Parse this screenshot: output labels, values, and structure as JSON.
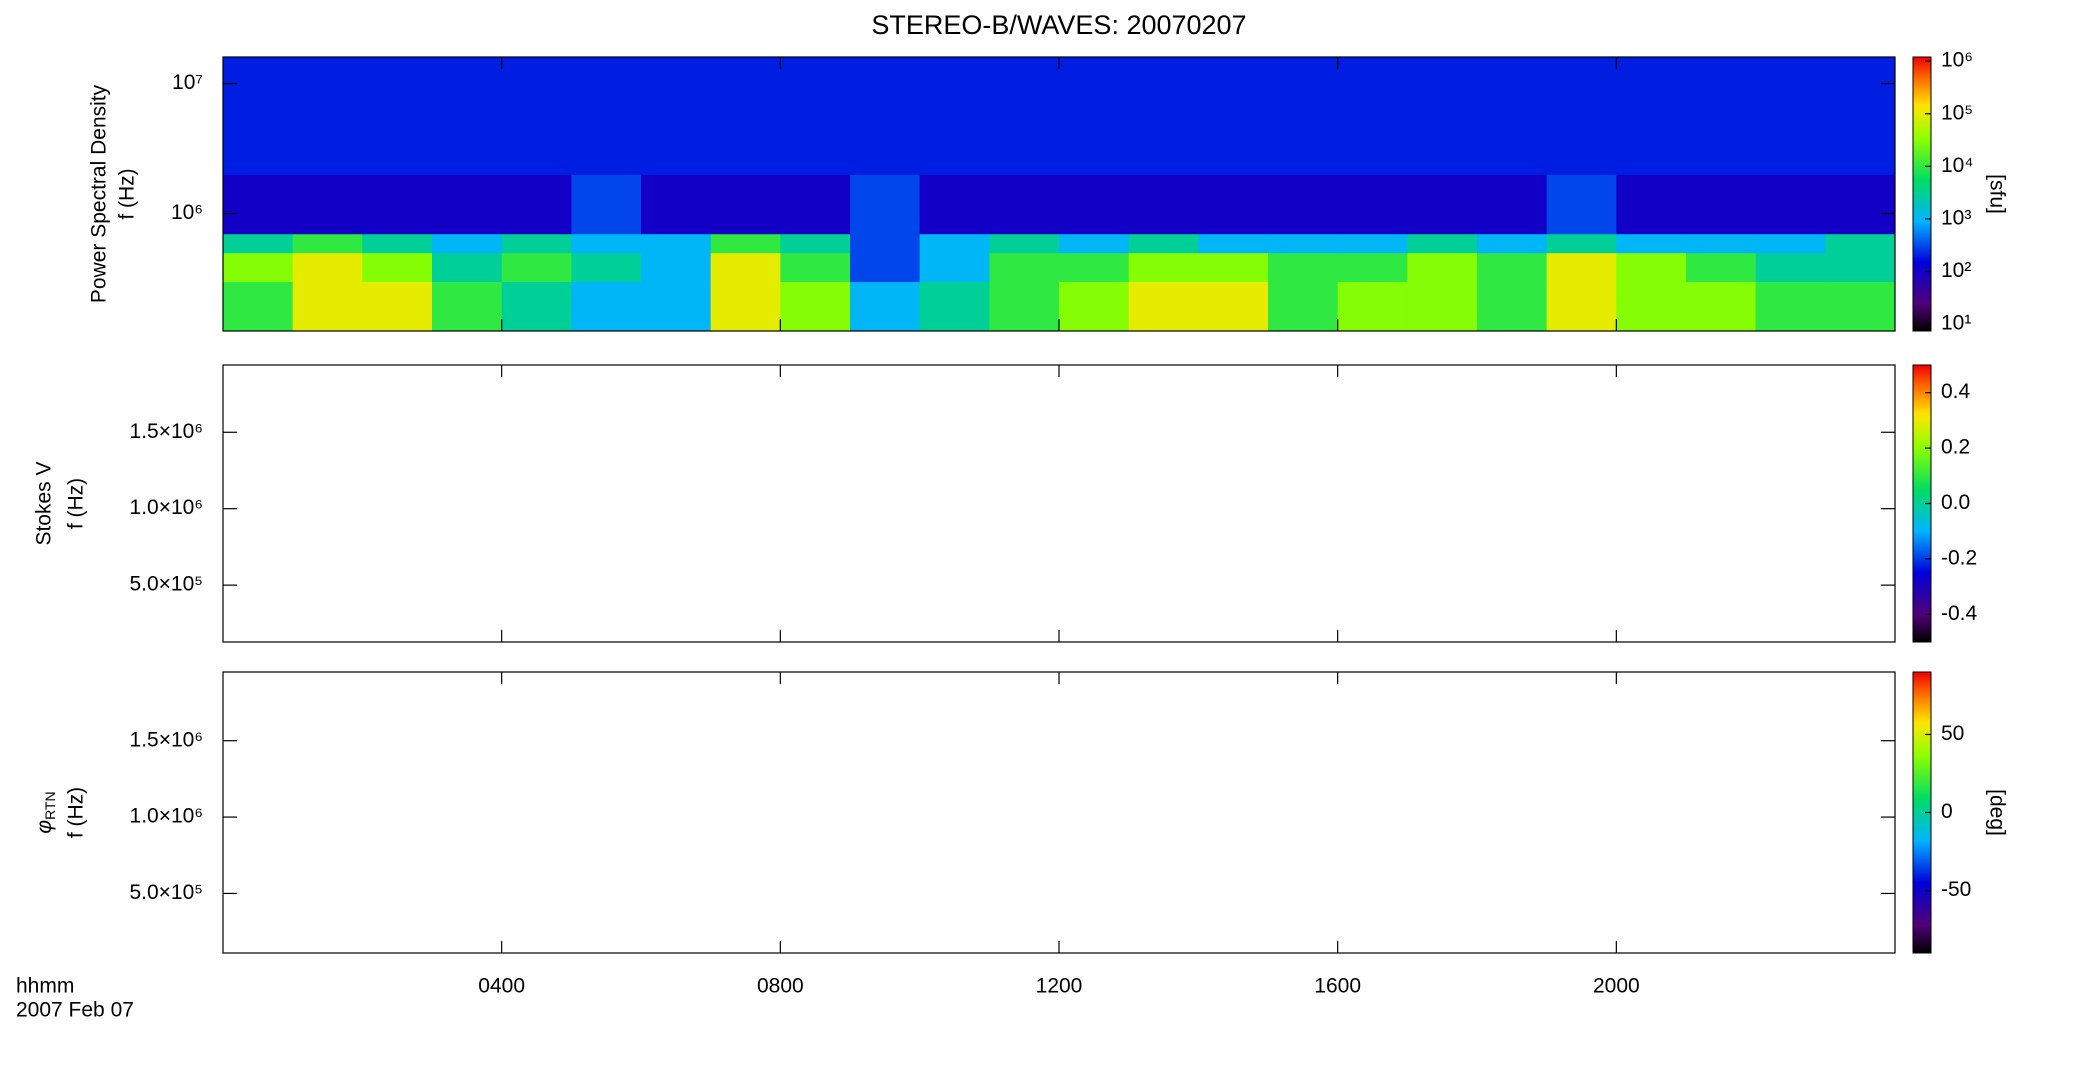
{
  "chart_data": [
    {
      "type": "heatmap",
      "title": "STEREO-B/WAVES: 20070207",
      "ylabel": "Power Spectral Density",
      "ylabel2": "f (Hz)",
      "xlim": [
        0,
        24
      ],
      "xticks": [
        4,
        8,
        12,
        16,
        20
      ],
      "ylog": true,
      "ylim": [
        125000,
        16000000
      ],
      "yticks": [
        {
          "value": 1000000,
          "label": "10⁶"
        },
        {
          "value": 10000000,
          "label": "10⁷"
        }
      ],
      "x_edges": [
        0,
        1,
        2,
        3,
        4,
        5,
        6,
        7,
        8,
        9,
        10,
        11,
        12,
        13,
        14,
        15,
        16,
        17,
        18,
        19,
        20,
        21,
        22,
        23,
        24
      ],
      "y_edges": [
        125000,
        300000,
        500000,
        700000,
        2000000,
        16000000
      ],
      "values": [
        [
          10000,
          100000,
          100000,
          10000,
          3000,
          1000,
          1000,
          100000,
          30000,
          1000,
          3000,
          10000,
          30000,
          100000,
          100000,
          10000,
          30000,
          30000,
          10000,
          100000,
          30000,
          30000,
          10000,
          10000
        ],
        [
          30000,
          100000,
          30000,
          3000,
          10000,
          3000,
          1000,
          100000,
          10000,
          300,
          1000,
          10000,
          10000,
          30000,
          30000,
          10000,
          10000,
          30000,
          10000,
          100000,
          30000,
          10000,
          3000,
          3000
        ],
        [
          3000,
          10000,
          3000,
          1000,
          3000,
          1000,
          1000,
          10000,
          3000,
          300,
          1000,
          3000,
          1000,
          3000,
          1000,
          1000,
          1000,
          3000,
          1000,
          3000,
          1000,
          1000,
          1000,
          3000
        ],
        [
          100,
          100,
          100,
          100,
          100,
          300,
          100,
          100,
          100,
          300,
          100,
          100,
          100,
          100,
          100,
          100,
          100,
          100,
          100,
          300,
          100,
          100,
          100,
          100
        ],
        [
          200,
          200,
          200,
          200,
          200,
          200,
          200,
          200,
          200,
          200,
          200,
          200,
          200,
          200,
          200,
          200,
          200,
          200,
          200,
          200,
          200,
          200,
          200,
          200
        ]
      ],
      "clog": true,
      "clim": [
        7.4,
        1200000
      ],
      "clabel": "[sfu]",
      "cticks": [
        {
          "value": 10,
          "label": "10¹"
        },
        {
          "value": 100,
          "label": "10²"
        },
        {
          "value": 1000,
          "label": "10³"
        },
        {
          "value": 10000,
          "label": "10⁴"
        },
        {
          "value": 100000,
          "label": "10⁵"
        },
        {
          "value": 1000000,
          "label": "10⁶"
        }
      ]
    },
    {
      "type": "heatmap",
      "ylabel": "Stokes V",
      "ylabel2": "f (Hz)",
      "xlim": [
        0,
        24
      ],
      "xticks": [
        4,
        8,
        12,
        16,
        20
      ],
      "ylim": [
        128000,
        1940000
      ],
      "yticks": [
        {
          "value": 500000,
          "label": "5.0×10⁵"
        },
        {
          "value": 1000000,
          "label": "1.0×10⁶"
        },
        {
          "value": 1500000,
          "label": "1.5×10⁶"
        }
      ],
      "clim": [
        -0.5,
        0.5
      ],
      "cticks": [
        -0.4,
        -0.2,
        {
          "value": 0,
          "label": "0.0"
        },
        0.2,
        0.4
      ]
    },
    {
      "type": "heatmap",
      "ylabel": "φ",
      "ylabel_sub": "RTN",
      "ylabel2": "f (Hz)",
      "xlim": [
        0,
        24
      ],
      "xticks": [
        {
          "value": 4,
          "label": "0400"
        },
        {
          "value": 8,
          "label": "0800"
        },
        {
          "value": 12,
          "label": "1200"
        },
        {
          "value": 16,
          "label": "1600"
        },
        {
          "value": 20,
          "label": "2000"
        }
      ],
      "xlabel": "hhmm",
      "date_label": "2007 Feb 07",
      "ylim": [
        110000,
        1950000
      ],
      "yticks": [
        {
          "value": 500000,
          "label": "5.0×10⁵"
        },
        {
          "value": 1000000,
          "label": "1.0×10⁶"
        },
        {
          "value": 1500000,
          "label": "1.5×10⁶"
        }
      ],
      "clim": [
        -90,
        90
      ],
      "clabel": "[deg]",
      "cticks": [
        -50,
        0,
        50
      ]
    }
  ]
}
